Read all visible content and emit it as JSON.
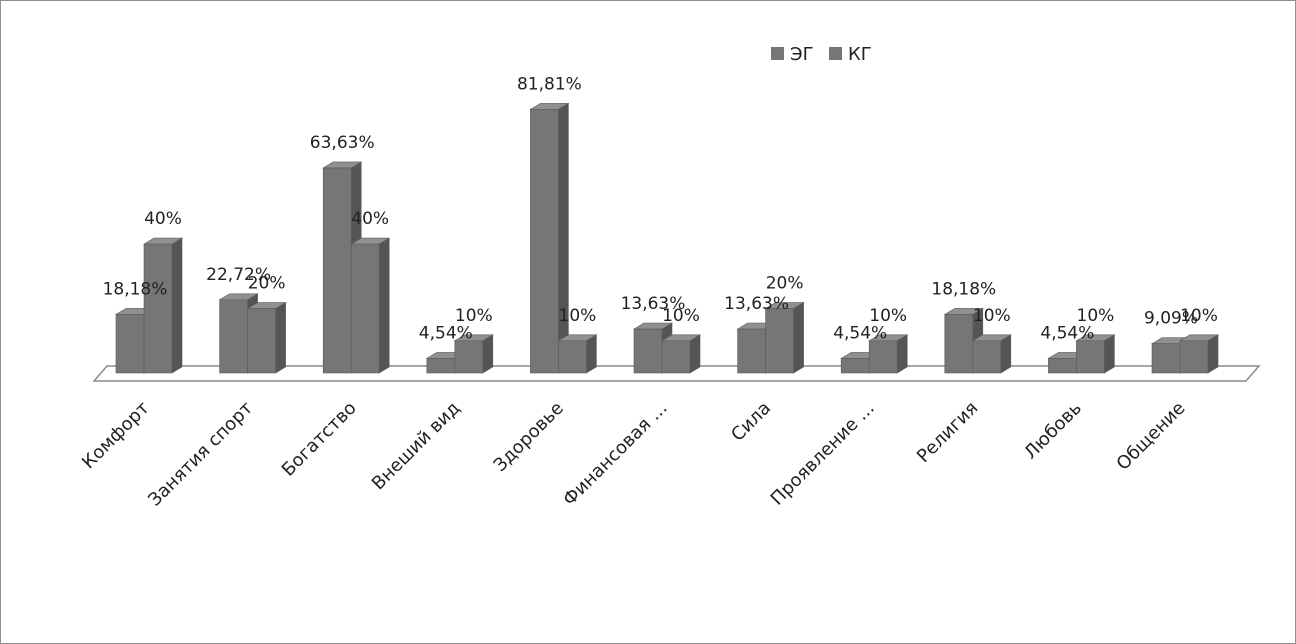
{
  "chart_data": {
    "type": "bar",
    "categories": [
      "Комфорт",
      "Занятия спорт",
      "Богатство",
      "Внеший вид",
      "Здоровье",
      "Финансовая ...",
      "Сила",
      "Проявление ...",
      "Религия",
      "Любовь",
      "Общение"
    ],
    "series": [
      {
        "name": "ЭГ",
        "values": [
          18.18,
          22.72,
          63.63,
          4.54,
          81.81,
          13.63,
          13.63,
          4.54,
          18.18,
          4.54,
          9.09
        ],
        "labels": [
          "18,18%",
          "22,72%",
          "63,63%",
          "4,54%",
          "81,81%",
          "13,63%",
          "13,63%",
          "4,54%",
          "18,18%",
          "4,54%",
          "9,09%"
        ]
      },
      {
        "name": "КГ",
        "values": [
          40,
          20,
          40,
          10,
          10,
          10,
          20,
          10,
          10,
          10,
          10
        ],
        "labels": [
          "40%",
          "20%",
          "40%",
          "10%",
          "10%",
          "10%",
          "20%",
          "10%",
          "10%",
          "10%",
          "10%"
        ]
      }
    ],
    "title": "",
    "xlabel": "",
    "ylabel": "",
    "ylim": [
      0,
      90
    ],
    "grid": false,
    "legend": "top-center",
    "style": "3d-column",
    "bar_color": "#767676"
  }
}
